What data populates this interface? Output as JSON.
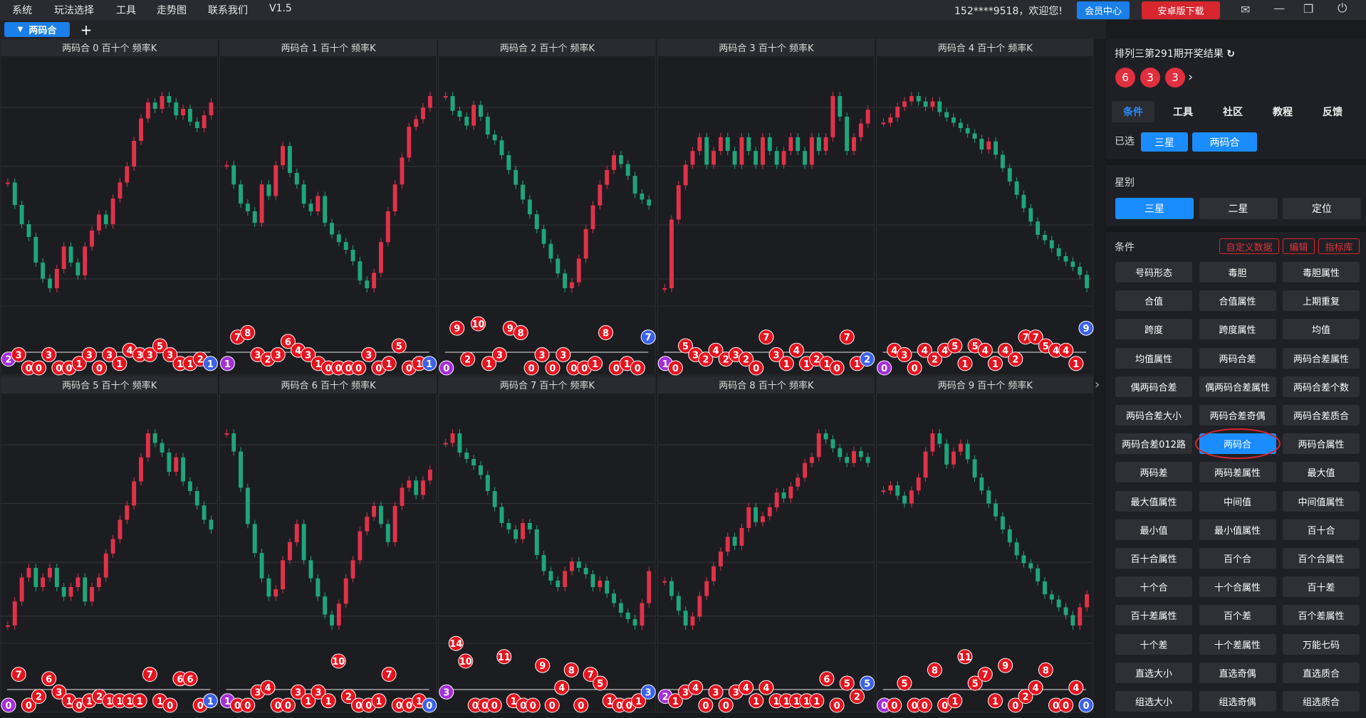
{
  "menu": [
    "系统",
    "玩法选择",
    "工具",
    "走势图",
    "联系我们",
    "V1.5"
  ],
  "user": "152****9518，欢迎您!",
  "header_buttons": [
    "会员中心",
    "安卓版下载"
  ],
  "tab": "两码合",
  "panels": [
    {
      "title": "两码合 0 百十个 频率K",
      "values": [
        55,
        48,
        42,
        38,
        30,
        25,
        22,
        28,
        35,
        30,
        26,
        35,
        40,
        45,
        42,
        50,
        55,
        60,
        68,
        75,
        80,
        78,
        82,
        80,
        76,
        78,
        74,
        72,
        76,
        80
      ],
      "balls": [
        2,
        3,
        0,
        0,
        3,
        0,
        0,
        1,
        3,
        0,
        3,
        1,
        4,
        3,
        3,
        5,
        3,
        1,
        1,
        2,
        1
      ]
    },
    {
      "title": "两码合 1 百十个 频率K",
      "values": [
        60,
        55,
        50,
        48,
        45,
        55,
        52,
        60,
        65,
        58,
        55,
        50,
        48,
        52,
        45,
        42,
        40,
        38,
        35,
        30,
        28,
        32,
        40,
        48,
        55,
        62,
        70,
        72,
        75,
        78
      ],
      "balls": [
        1,
        7,
        8,
        3,
        2,
        3,
        6,
        4,
        3,
        1,
        0,
        0,
        0,
        0,
        3,
        0,
        1,
        5,
        0,
        1,
        1
      ]
    },
    {
      "title": "两码合 2 百十个 频率K",
      "values": [
        85,
        80,
        78,
        75,
        82,
        78,
        72,
        70,
        65,
        60,
        55,
        50,
        45,
        40,
        35,
        30,
        25,
        20,
        22,
        30,
        40,
        48,
        55,
        60,
        65,
        62,
        58,
        52,
        50,
        48
      ],
      "balls": [
        0,
        9,
        2,
        10,
        1,
        3,
        9,
        8,
        0,
        3,
        0,
        3,
        0,
        0,
        1,
        8,
        0,
        1,
        0,
        7
      ]
    },
    {
      "title": "两码合 3 百十个 频率K",
      "values": [
        40,
        50,
        55,
        58,
        60,
        62,
        58,
        60,
        62,
        60,
        58,
        62,
        60,
        58,
        62,
        60,
        58,
        60,
        62,
        60,
        58,
        62,
        60,
        62,
        68,
        65,
        60,
        62,
        64,
        66
      ],
      "balls": [
        1,
        0,
        5,
        3,
        2,
        4,
        2,
        3,
        2,
        0,
        7,
        3,
        1,
        4,
        1,
        2,
        1,
        0,
        7,
        1,
        2
      ]
    },
    {
      "title": "两码合 4 百十个 频率K",
      "values": [
        72,
        74,
        78,
        80,
        82,
        80,
        78,
        80,
        76,
        74,
        72,
        70,
        68,
        66,
        62,
        65,
        60,
        55,
        50,
        45,
        40,
        35,
        30,
        28,
        25,
        22,
        20,
        18,
        15,
        10
      ],
      "balls": [
        0,
        4,
        3,
        0,
        4,
        2,
        4,
        5,
        1,
        5,
        4,
        1,
        4,
        2,
        7,
        7,
        5,
        4,
        4,
        1,
        9
      ]
    },
    {
      "title": "两码合 5 百十个 频率K",
      "values": [
        40,
        45,
        50,
        52,
        48,
        50,
        52,
        48,
        46,
        48,
        50,
        45,
        48,
        50,
        55,
        58,
        62,
        65,
        70,
        75,
        80,
        78,
        76,
        72,
        75,
        70,
        68,
        65,
        62,
        60
      ],
      "balls": [
        0,
        7,
        0,
        2,
        6,
        3,
        1,
        0,
        1,
        2,
        1,
        1,
        1,
        1,
        7,
        1,
        0,
        6,
        6,
        0,
        1
      ]
    },
    {
      "title": "两码合 6 百十个 频率K",
      "values": [
        75,
        70,
        60,
        50,
        42,
        35,
        30,
        32,
        40,
        45,
        50,
        40,
        35,
        30,
        25,
        22,
        28,
        35,
        40,
        48,
        52,
        55,
        50,
        45,
        55,
        60,
        62,
        58,
        62,
        65
      ],
      "balls": [
        1,
        0,
        0,
        3,
        4,
        0,
        0,
        3,
        1,
        3,
        1,
        10,
        2,
        0,
        0,
        1,
        7,
        0,
        0,
        1,
        0
      ]
    },
    {
      "title": "两码合 7 百十个 频率K",
      "values": [
        75,
        78,
        72,
        70,
        68,
        65,
        60,
        55,
        50,
        48,
        45,
        50,
        48,
        40,
        35,
        32,
        30,
        35,
        38,
        36,
        34,
        30,
        32,
        28,
        25,
        22,
        20,
        18,
        25,
        35
      ],
      "balls": [
        3,
        14,
        10,
        0,
        0,
        0,
        11,
        1,
        0,
        0,
        9,
        0,
        4,
        8,
        0,
        7,
        5,
        1,
        0,
        0,
        1,
        3
      ]
    },
    {
      "title": "两码合 8 百十个 频率K",
      "values": [
        30,
        25,
        20,
        15,
        18,
        25,
        30,
        35,
        40,
        45,
        42,
        48,
        55,
        50,
        52,
        55,
        60,
        58,
        62,
        65,
        70,
        72,
        80,
        78,
        75,
        72,
        70,
        74,
        72,
        70
      ],
      "balls": [
        2,
        1,
        3,
        4,
        0,
        3,
        0,
        3,
        4,
        1,
        4,
        1,
        1,
        1,
        1,
        1,
        6,
        0,
        5,
        2,
        5
      ]
    },
    {
      "title": "两码合 9 百十个 频率K",
      "values": [
        70,
        72,
        68,
        65,
        70,
        75,
        85,
        92,
        88,
        80,
        85,
        88,
        82,
        75,
        70,
        65,
        60,
        55,
        50,
        45,
        42,
        40,
        35,
        30,
        28,
        25,
        22,
        18,
        25,
        30
      ],
      "balls": [
        0,
        0,
        5,
        0,
        0,
        8,
        0,
        1,
        11,
        5,
        7,
        1,
        9,
        0,
        2,
        4,
        8,
        0,
        0,
        4,
        0
      ]
    }
  ],
  "result_title": "排列三第291期开奖结果",
  "draw_numbers": [
    6,
    3,
    3
  ],
  "nav_tabs": [
    "条件",
    "工具",
    "社区",
    "教程",
    "反馈"
  ],
  "selected_label": "已选",
  "selected": [
    "三星",
    "两码合"
  ],
  "star_label": "星别",
  "star_options": [
    "三星",
    "二星",
    "定位"
  ],
  "condition_label": "条件",
  "condition_actions": [
    "自定义数据",
    "编辑",
    "指标库"
  ],
  "conditions": [
    "号码形态",
    "毒胆",
    "毒胆属性",
    "合值",
    "合值属性",
    "上期重复",
    "跨度",
    "跨度属性",
    "均值",
    "均值属性",
    "两码合差",
    "两码合差属性",
    "偶两码合差",
    "偶两码合差属性",
    "两码合差个数",
    "两码合差大小",
    "两码合差奇偶",
    "两码合差质合",
    "两码合差012路",
    "两码合",
    "两码合属性",
    "两码差",
    "两码差属性",
    "最大值",
    "最大值属性",
    "中间值",
    "中间值属性",
    "最小值",
    "最小值属性",
    "百十合",
    "百十合属性",
    "百个合",
    "百个合属性",
    "十个合",
    "十个合属性",
    "百十差",
    "百十差属性",
    "百个差",
    "百个差属性",
    "十个差",
    "十个差属性",
    "万能七码",
    "直选大小",
    "直选奇偶",
    "直选质合",
    "组选大小",
    "组选奇偶",
    "组选质合"
  ],
  "active_condition": "两码合"
}
